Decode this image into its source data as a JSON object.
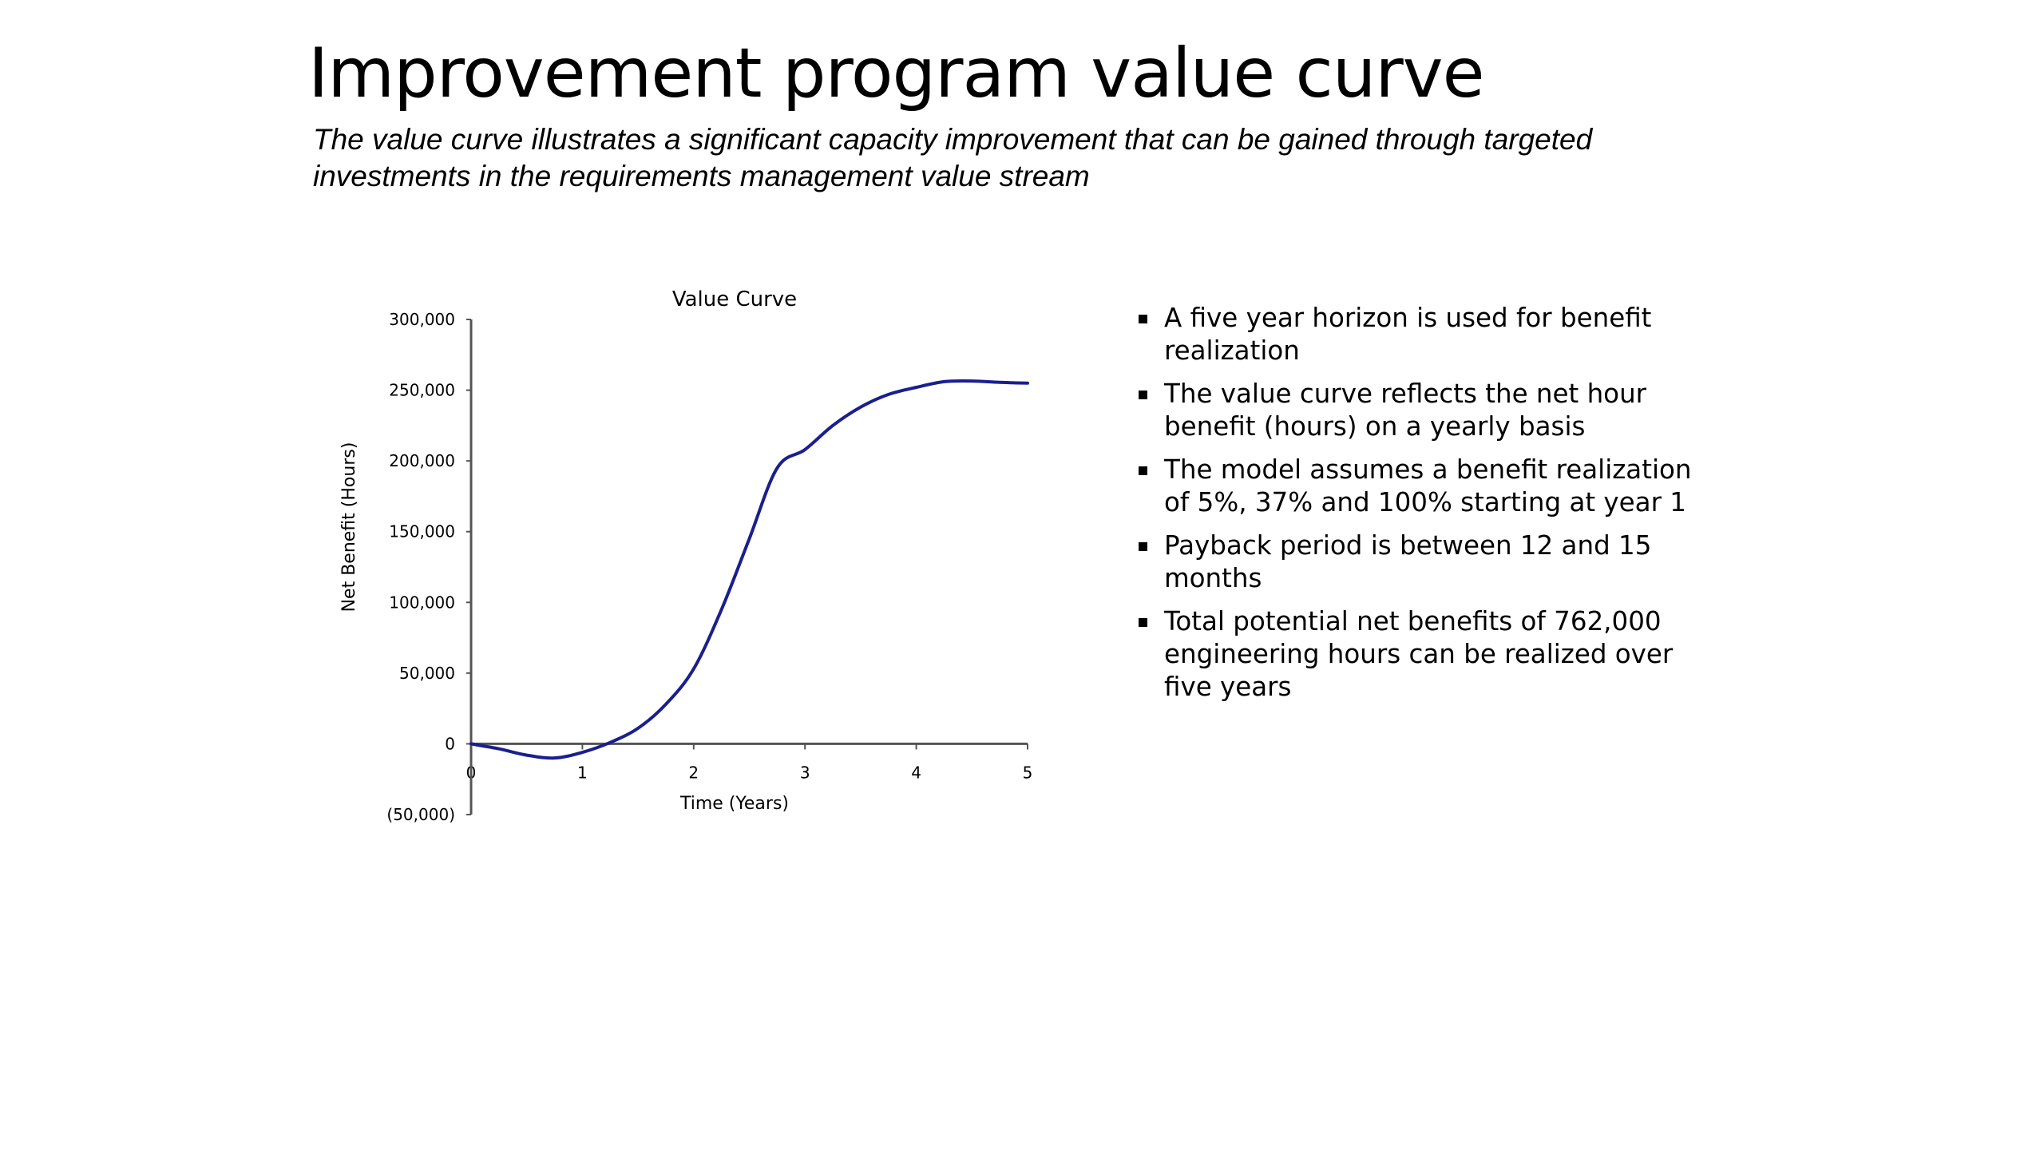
{
  "slide": {
    "title": "Improvement program value curve",
    "subtitle": "The value curve illustrates a significant capacity improvement that can be gained through targeted investments in the requirements management value stream"
  },
  "bullets": [
    "A five year horizon is used for benefit realization",
    "The value curve reflects the net hour benefit (hours) on a yearly basis",
    "The model assumes a benefit realization of 5%, 37% and 100% starting at year 1",
    "Payback period is between 12 and 15 months",
    "Total potential net benefits of 762,000 engineering hours can be realized over five years"
  ],
  "colors": {
    "line": "#1a1f8f",
    "axis": "#555555"
  },
  "chart_data": {
    "type": "line",
    "title": "Value Curve",
    "xlabel": "Time (Years)",
    "ylabel": "Net Benefit (Hours)",
    "xlim": [
      0,
      5
    ],
    "ylim": [
      -50000,
      300000
    ],
    "x_ticks": [
      "0",
      "1",
      "2",
      "3",
      "4",
      "5"
    ],
    "y_ticks": [
      "300,000",
      "250,000",
      "200,000",
      "150,000",
      "100,000",
      "50,000",
      "0",
      "(50,000)"
    ],
    "y_tick_values": [
      300000,
      250000,
      200000,
      150000,
      100000,
      50000,
      0,
      -50000
    ],
    "grid": false,
    "legend": "none",
    "series": [
      {
        "name": "Net Benefit",
        "x": [
          0,
          0.25,
          0.5,
          0.75,
          1.0,
          1.25,
          1.5,
          1.75,
          2.0,
          2.25,
          2.5,
          2.75,
          3.0,
          3.25,
          3.5,
          3.75,
          4.0,
          4.25,
          4.5,
          4.75,
          5.0
        ],
        "values": [
          0,
          -3500,
          -8000,
          -10000,
          -6000,
          1000,
          11000,
          28000,
          53000,
          95000,
          145000,
          195000,
          208000,
          225000,
          238000,
          247000,
          252000,
          256000,
          256500,
          255500,
          255000
        ]
      }
    ]
  }
}
